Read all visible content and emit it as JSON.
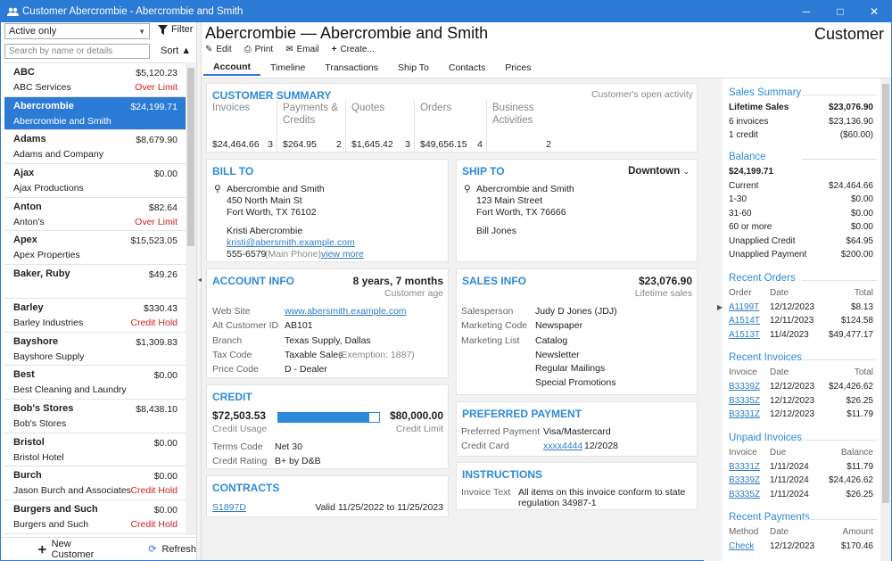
{
  "window": {
    "title": "Customer Abercrombie - Abercrombie and Smith",
    "min": "─",
    "max": "□",
    "close": "✕"
  },
  "left": {
    "filter_value": "Active only",
    "filter_label": "Filter",
    "search_placeholder": "Search by name or details",
    "sort_label": "Sort",
    "customers": [
      {
        "name": "ABC",
        "amount": "$5,120.23",
        "sub": "ABC Services",
        "status": "Over Limit"
      },
      {
        "name": "Abercrombie",
        "amount": "$24,199.71",
        "sub": "Abercrombie and Smith",
        "status": ""
      },
      {
        "name": "Adams",
        "amount": "$8,679.90",
        "sub": "Adams and Company",
        "status": ""
      },
      {
        "name": "Ajax",
        "amount": "$0.00",
        "sub": "Ajax Productions",
        "status": ""
      },
      {
        "name": "Anton",
        "amount": "$82.64",
        "sub": "Anton's",
        "status": "Over Limit"
      },
      {
        "name": "Apex",
        "amount": "$15,523.05",
        "sub": "Apex Properties",
        "status": ""
      },
      {
        "name": "Baker, Ruby",
        "amount": "$49.26",
        "sub": "",
        "status": ""
      },
      {
        "name": "Barley",
        "amount": "$330.43",
        "sub": "Barley Industries",
        "status": "Credit Hold"
      },
      {
        "name": "Bayshore",
        "amount": "$1,309.83",
        "sub": "Bayshore Supply",
        "status": ""
      },
      {
        "name": "Best",
        "amount": "$0.00",
        "sub": "Best Cleaning and Laundry",
        "status": ""
      },
      {
        "name": "Bob's Stores",
        "amount": "$8,438.10",
        "sub": "Bob's Stores",
        "status": ""
      },
      {
        "name": "Bristol",
        "amount": "$0.00",
        "sub": "Bristol Hotel",
        "status": ""
      },
      {
        "name": "Burch",
        "amount": "$0.00",
        "sub": "Jason Burch and Associates",
        "status": "Credit Hold"
      },
      {
        "name": "Burgers and Such",
        "amount": "$0.00",
        "sub": "Burgers and Such",
        "status": "Credit Hold"
      }
    ],
    "new_customer": "New Customer",
    "refresh": "Refresh"
  },
  "header": {
    "title": "Abercrombie — Abercrombie and Smith",
    "type": "Customer",
    "edit": "Edit",
    "print": "Print",
    "email": "Email",
    "create": "Create..."
  },
  "tabs": [
    "Account",
    "Timeline",
    "Transactions",
    "Ship To",
    "Contacts",
    "Prices"
  ],
  "summary": {
    "title": "CUSTOMER SUMMARY",
    "link": "Customer's open activity",
    "cols": [
      {
        "label": "Invoices",
        "amount": "$24,464.66",
        "count": "3"
      },
      {
        "label": "Payments & Credits",
        "amount": "$264.95",
        "count": "2"
      },
      {
        "label": "Quotes",
        "amount": "$1,645.42",
        "count": "3"
      },
      {
        "label": "Orders",
        "amount": "$49,656.15",
        "count": "4"
      },
      {
        "label": "Business Activities",
        "amount": "",
        "count": "2"
      }
    ]
  },
  "bill_to": {
    "title": "BILL TO",
    "name": "Abercrombie and Smith",
    "street": "450 North Main St",
    "city": "Fort Worth, TX  76102",
    "contact": "Kristi Abercrombie",
    "email": "kristi@abersmith.example.com",
    "phone": "555-6579",
    "phone_note": "(Main Phone)",
    "more": "view more"
  },
  "ship_to": {
    "title": "SHIP TO",
    "selected": "Downtown",
    "name": "Abercrombie and Smith",
    "street": "123 Main Street",
    "city": "Fort Worth, TX  76666",
    "contact": "Bill Jones"
  },
  "account": {
    "title": "ACCOUNT INFO",
    "age": "8 years, 7 months",
    "age_label": "Customer age",
    "rows": [
      {
        "k": "Web Site",
        "v": "www.abersmith.example.com"
      },
      {
        "k": "Alt Customer ID",
        "v": "AB101"
      },
      {
        "k": "Branch",
        "v": "Texas Supply, Dallas"
      },
      {
        "k": "Tax Code",
        "v": "Taxable Sales"
      },
      {
        "k": "Price Code",
        "v": "D - Dealer"
      }
    ],
    "tax_note": "(Exemption: 1887)"
  },
  "sales": {
    "title": "SALES INFO",
    "total": "$23,076.90",
    "total_label": "Lifetime sales",
    "salesperson_label": "Salesperson",
    "salesperson": "Judy D Jones (JDJ)",
    "mcode_label": "Marketing Code",
    "mcode": "Newspaper",
    "mlist_label": "Marketing List",
    "mlist": [
      "Catalog",
      "Newsletter",
      "Regular Mailings",
      "Special Promotions"
    ]
  },
  "credit": {
    "title": "CREDIT",
    "usage": "$72,503.53",
    "usage_label": "Credit Usage",
    "limit": "$80,000.00",
    "limit_label": "Credit Limit",
    "usage_fraction": 0.906,
    "terms_label": "Terms Code",
    "terms": "Net 30",
    "rating_label": "Credit Rating",
    "rating": "B+ by D&B"
  },
  "payment": {
    "title": "PREFERRED PAYMENT",
    "pref_label": "Preferred Payment",
    "pref": "Visa/Mastercard",
    "card_label": "Credit Card",
    "card": "xxxx4444",
    "exp": "12/2028"
  },
  "contracts": {
    "title": "CONTRACTS",
    "id": "S1897D",
    "valid": "Valid 11/25/2022 to 11/25/2023"
  },
  "instructions": {
    "title": "INSTRUCTIONS",
    "label": "Invoice Text",
    "text1": "All items on this invoice conform to state",
    "text2": "regulation 34987-1"
  },
  "side": {
    "sales_title": "Sales Summary",
    "lifetime_label": "Lifetime Sales",
    "lifetime": "$23,076.90",
    "inv_label": "6 invoices",
    "inv": "$23,136.90",
    "credit_label": "1 credit",
    "credit": "($60.00)",
    "balance_title": "Balance",
    "balance": "$24,199.71",
    "balance_rows": [
      {
        "k": "Current",
        "v": "$24,464.66"
      },
      {
        "k": "1-30",
        "v": "$0.00"
      },
      {
        "k": "31-60",
        "v": "$0.00"
      },
      {
        "k": "60 or more",
        "v": "$0.00"
      },
      {
        "k": "Unapplied Credit",
        "v": "$64.95"
      },
      {
        "k": "Unapplied Payment",
        "v": "$200.00"
      }
    ],
    "orders_title": "Recent Orders",
    "orders_head": [
      "Order",
      "Date",
      "Total"
    ],
    "orders": [
      [
        "A1199T",
        "12/12/2023",
        "$8.13"
      ],
      [
        "A1514T",
        "12/11/2023",
        "$124.58"
      ],
      [
        "A1513T",
        "11/4/2023",
        "$49,477.17"
      ]
    ],
    "invoices_title": "Recent Invoices",
    "invoices_head": [
      "Invoice",
      "Date",
      "Total"
    ],
    "invoices": [
      [
        "B3339Z",
        "12/12/2023",
        "$24,426.62"
      ],
      [
        "B3335Z",
        "12/12/2023",
        "$26.25"
      ],
      [
        "B3331Z",
        "12/12/2023",
        "$11.79"
      ]
    ],
    "unpaid_title": "Unpaid Invoices",
    "unpaid_head": [
      "Invoice",
      "Due",
      "Balance"
    ],
    "unpaid": [
      [
        "B3331Z",
        "1/11/2024",
        "$11.79"
      ],
      [
        "B3339Z",
        "1/11/2024",
        "$24,426.62"
      ],
      [
        "B3335Z",
        "1/11/2024",
        "$26.25"
      ]
    ],
    "payments_title": "Recent Payments",
    "payments_head": [
      "Method",
      "Date",
      "Amount"
    ],
    "payments": [
      [
        "Check",
        "12/12/2023",
        "$170.46"
      ]
    ]
  },
  "colors": {
    "accent": "#2b7bd6",
    "alert": "#d32020"
  }
}
